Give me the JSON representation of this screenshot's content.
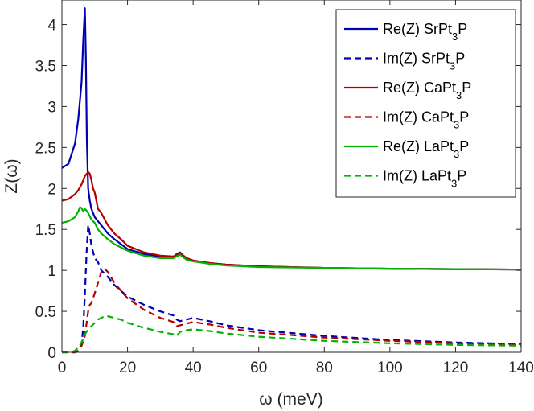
{
  "chart_data": {
    "type": "line",
    "xlabel": "ω (meV)",
    "ylabel": "Z(ω)",
    "xlim": [
      0,
      140
    ],
    "ylim": [
      0,
      4.3
    ],
    "xticks": [
      0,
      20,
      40,
      60,
      80,
      100,
      120,
      140
    ],
    "yticks": [
      0,
      0.5,
      1,
      1.5,
      2,
      2.5,
      3,
      3.5,
      4
    ],
    "xtick_labels": [
      "0",
      "20",
      "40",
      "60",
      "80",
      "100",
      "120",
      "140"
    ],
    "ytick_labels": [
      "0",
      "0.5",
      "1",
      "1.5",
      "2",
      "2.5",
      "3",
      "3.5",
      "4"
    ],
    "grid": false,
    "legend_position": "top-right",
    "series": [
      {
        "name_main": "Re(Z) SrPt",
        "name_sub": "3",
        "name_tail": "P",
        "color": "#0000b4",
        "dash": "solid",
        "x": [
          0,
          2,
          4,
          5,
          6,
          6.5,
          7,
          7.3,
          7.6,
          8,
          8.5,
          9,
          10,
          11,
          12,
          14,
          16,
          18,
          20,
          25,
          30,
          34,
          35,
          36,
          37,
          38,
          40,
          45,
          50,
          60,
          80,
          100,
          120,
          140
        ],
        "y": [
          2.25,
          2.3,
          2.55,
          2.85,
          3.3,
          3.8,
          4.2,
          3.6,
          2.6,
          2.0,
          1.85,
          1.75,
          1.65,
          1.6,
          1.55,
          1.45,
          1.38,
          1.32,
          1.26,
          1.2,
          1.17,
          1.16,
          1.2,
          1.22,
          1.18,
          1.15,
          1.12,
          1.09,
          1.07,
          1.05,
          1.03,
          1.02,
          1.015,
          1.01
        ]
      },
      {
        "name_main": "Im(Z) SrPt",
        "name_sub": "3",
        "name_tail": "P",
        "color": "#0000b4",
        "dash": "dashed",
        "x": [
          0,
          4,
          5,
          6,
          6.5,
          7,
          7.5,
          8,
          8.5,
          9,
          10,
          11,
          12,
          14,
          16,
          18,
          20,
          25,
          30,
          34,
          35,
          36,
          38,
          40,
          45,
          50,
          60,
          80,
          100,
          120,
          140
        ],
        "y": [
          0,
          0,
          0.02,
          0.1,
          0.3,
          0.7,
          1.2,
          1.55,
          1.45,
          1.3,
          1.15,
          1.1,
          1.0,
          0.92,
          0.82,
          0.75,
          0.68,
          0.58,
          0.5,
          0.45,
          0.4,
          0.38,
          0.4,
          0.42,
          0.38,
          0.33,
          0.27,
          0.2,
          0.15,
          0.12,
          0.1
        ]
      },
      {
        "name_main": "Re(Z) CaPt",
        "name_sub": "3",
        "name_tail": "P",
        "color": "#b40000",
        "dash": "solid",
        "x": [
          0,
          2,
          4,
          5,
          6,
          7,
          8,
          8.5,
          9,
          9.5,
          10,
          11,
          12,
          14,
          16,
          18,
          20,
          25,
          30,
          34,
          35,
          36,
          37,
          38,
          40,
          45,
          50,
          60,
          80,
          100,
          120,
          140
        ],
        "y": [
          1.85,
          1.87,
          1.93,
          1.98,
          2.05,
          2.15,
          2.2,
          2.18,
          2.1,
          2.0,
          1.95,
          1.75,
          1.7,
          1.55,
          1.45,
          1.38,
          1.3,
          1.22,
          1.18,
          1.17,
          1.19,
          1.21,
          1.18,
          1.15,
          1.12,
          1.09,
          1.07,
          1.05,
          1.03,
          1.02,
          1.015,
          1.01
        ]
      },
      {
        "name_main": "Im(Z) CaPt",
        "name_sub": "3",
        "name_tail": "P",
        "color": "#b40000",
        "dash": "dashed",
        "x": [
          0,
          4,
          5,
          6,
          7,
          7.5,
          8,
          8.5,
          9,
          10,
          11,
          12,
          13,
          14,
          16,
          18,
          20,
          25,
          30,
          34,
          35,
          36,
          38,
          40,
          45,
          50,
          60,
          80,
          100,
          120,
          140
        ],
        "y": [
          0,
          0,
          0.02,
          0.08,
          0.2,
          0.35,
          0.5,
          0.58,
          0.6,
          0.72,
          0.85,
          0.98,
          1.02,
          0.98,
          0.85,
          0.75,
          0.66,
          0.52,
          0.42,
          0.37,
          0.32,
          0.33,
          0.35,
          0.37,
          0.34,
          0.3,
          0.24,
          0.18,
          0.14,
          0.11,
          0.09
        ]
      },
      {
        "name_main": "Re(Z) LaPt",
        "name_sub": "3",
        "name_tail": "P",
        "color": "#00b400",
        "dash": "solid",
        "x": [
          0,
          2,
          4,
          5,
          5.5,
          6,
          6.5,
          7,
          7.5,
          8,
          9,
          10,
          11,
          12,
          14,
          16,
          18,
          20,
          25,
          30,
          34,
          35,
          36,
          37,
          38,
          40,
          45,
          50,
          60,
          80,
          100,
          120,
          140
        ],
        "y": [
          1.58,
          1.6,
          1.65,
          1.72,
          1.77,
          1.76,
          1.72,
          1.75,
          1.73,
          1.7,
          1.62,
          1.58,
          1.5,
          1.45,
          1.38,
          1.32,
          1.28,
          1.24,
          1.18,
          1.15,
          1.15,
          1.17,
          1.19,
          1.16,
          1.13,
          1.11,
          1.08,
          1.06,
          1.04,
          1.03,
          1.02,
          1.015,
          1.01
        ]
      },
      {
        "name_main": "Im(Z) LaPt",
        "name_sub": "3",
        "name_tail": "P",
        "color": "#00b400",
        "dash": "dashed",
        "x": [
          0,
          3,
          4,
          5,
          6,
          7,
          8,
          9,
          10,
          11,
          12,
          13,
          14,
          16,
          18,
          20,
          25,
          30,
          34,
          35,
          36,
          38,
          40,
          45,
          50,
          60,
          80,
          100,
          120,
          140
        ],
        "y": [
          0,
          0,
          0.02,
          0.06,
          0.12,
          0.22,
          0.28,
          0.32,
          0.36,
          0.4,
          0.42,
          0.44,
          0.44,
          0.42,
          0.4,
          0.36,
          0.3,
          0.25,
          0.22,
          0.2,
          0.25,
          0.27,
          0.28,
          0.26,
          0.23,
          0.19,
          0.14,
          0.11,
          0.09,
          0.08
        ]
      }
    ]
  }
}
